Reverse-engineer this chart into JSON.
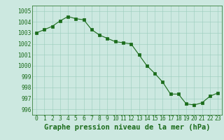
{
  "x": [
    0,
    1,
    2,
    3,
    4,
    5,
    6,
    7,
    8,
    9,
    10,
    11,
    12,
    13,
    14,
    15,
    16,
    17,
    18,
    19,
    20,
    21,
    22,
    23
  ],
  "y": [
    1003.0,
    1003.3,
    1003.6,
    1004.1,
    1004.5,
    1004.3,
    1004.2,
    1003.3,
    1002.8,
    1002.5,
    1002.2,
    1002.1,
    1002.0,
    1001.0,
    1000.0,
    999.3,
    998.5,
    997.4,
    997.4,
    996.5,
    996.4,
    996.6,
    997.2,
    997.5
  ],
  "line_color": "#1a6b1a",
  "marker_color": "#1a6b1a",
  "bg_color": "#cce8e0",
  "grid_color": "#99ccbb",
  "xlabel": "Graphe pression niveau de la mer (hPa)",
  "ylim": [
    995.5,
    1005.5
  ],
  "xlim": [
    -0.5,
    23.5
  ],
  "yticks": [
    996,
    997,
    998,
    999,
    1000,
    1001,
    1002,
    1003,
    1004,
    1005
  ],
  "xticks": [
    0,
    1,
    2,
    3,
    4,
    5,
    6,
    7,
    8,
    9,
    10,
    11,
    12,
    13,
    14,
    15,
    16,
    17,
    18,
    19,
    20,
    21,
    22,
    23
  ],
  "tick_fontsize": 5.8,
  "xlabel_fontsize": 7.5
}
